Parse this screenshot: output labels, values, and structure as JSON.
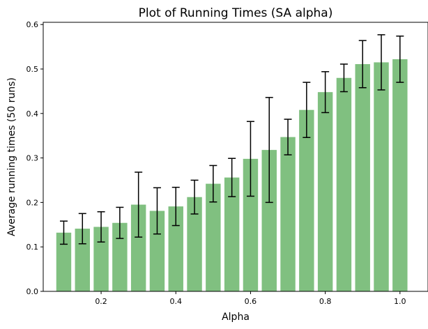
{
  "chart_data": {
    "type": "bar",
    "title": "Plot of Running Times (SA alpha)",
    "xlabel": "Alpha",
    "ylabel": "Average running times (50 runs)",
    "x": [
      0.1,
      0.15,
      0.2,
      0.25,
      0.3,
      0.35,
      0.4,
      0.45,
      0.5,
      0.55,
      0.6,
      0.65,
      0.7,
      0.75,
      0.8,
      0.85,
      0.9,
      0.95,
      1.0
    ],
    "values": [
      0.132,
      0.141,
      0.145,
      0.154,
      0.195,
      0.181,
      0.191,
      0.212,
      0.242,
      0.256,
      0.298,
      0.318,
      0.347,
      0.408,
      0.448,
      0.48,
      0.511,
      0.515,
      0.522
    ],
    "errors": [
      0.026,
      0.034,
      0.034,
      0.035,
      0.073,
      0.052,
      0.043,
      0.038,
      0.041,
      0.043,
      0.084,
      0.118,
      0.04,
      0.062,
      0.046,
      0.031,
      0.053,
      0.062,
      0.052
    ],
    "xlim": [
      0.045,
      1.075
    ],
    "ylim": [
      0,
      0.605
    ],
    "xticks": [
      0.2,
      0.4,
      0.6,
      0.8,
      1.0
    ],
    "xtick_labels": [
      "0.2",
      "0.4",
      "0.6",
      "0.8",
      "1.0"
    ],
    "yticks": [
      0.0,
      0.1,
      0.2,
      0.3,
      0.4,
      0.5,
      0.6
    ],
    "ytick_labels": [
      "0.0",
      "0.1",
      "0.2",
      "0.3",
      "0.4",
      "0.5",
      "0.6"
    ],
    "bar_width": 0.04,
    "bar_color": "#80c080",
    "error_color": "#000000",
    "grid": false
  }
}
